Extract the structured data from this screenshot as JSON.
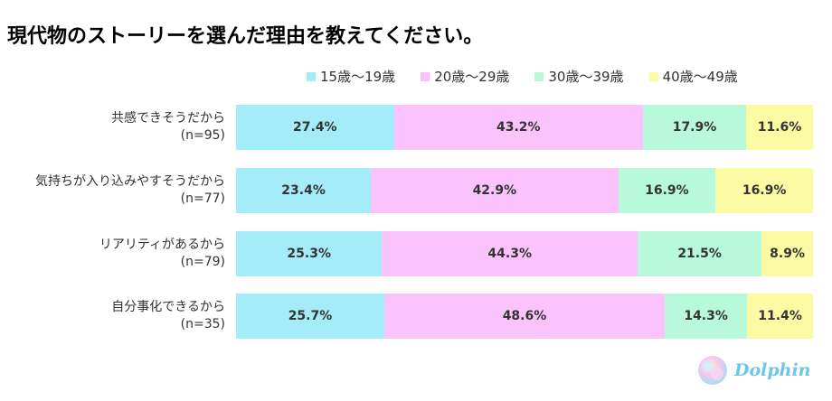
{
  "title": "現代物のストーリーを選んだ理由を教えてください。",
  "brand": {
    "name": "Dolphin"
  },
  "colors": {
    "age_15_19": "#a4ecf8",
    "age_20_29": "#fbc3fb",
    "age_30_39": "#b8f8db",
    "age_40_49": "#fbfba4"
  },
  "chart_data": {
    "type": "bar",
    "orientation": "horizontal",
    "stacked": true,
    "title": "現代物のストーリーを選んだ理由を教えてください。",
    "unit": "%",
    "legend_position": "top",
    "categories": [
      {
        "label": "共感できそうだから",
        "n": "(n=95)"
      },
      {
        "label": "気持ちが入り込みやすそうだから",
        "n": "(n=77)"
      },
      {
        "label": "リアリティがあるから",
        "n": "(n=79)"
      },
      {
        "label": "自分事化できるから",
        "n": "(n=35)"
      }
    ],
    "series": [
      {
        "name": "15歳〜19歳",
        "color": "#a4ecf8",
        "values": [
          27.4,
          23.4,
          25.3,
          25.7
        ],
        "labels": [
          "27.4%",
          "23.4%",
          "25.3%",
          "25.7%"
        ]
      },
      {
        "name": "20歳〜29歳",
        "color": "#fbc3fb",
        "values": [
          43.2,
          42.9,
          44.3,
          48.6
        ],
        "labels": [
          "43.2%",
          "42.9%",
          "44.3%",
          "48.6%"
        ]
      },
      {
        "name": "30歳〜39歳",
        "color": "#b8f8db",
        "values": [
          17.9,
          16.9,
          21.5,
          14.3
        ],
        "labels": [
          "17.9%",
          "16.9%",
          "21.5%",
          "14.3%"
        ]
      },
      {
        "name": "40歳〜49歳",
        "color": "#fbfba4",
        "values": [
          11.6,
          16.9,
          8.9,
          11.4
        ],
        "labels": [
          "11.6%",
          "16.9%",
          "8.9%",
          "11.4%"
        ]
      }
    ]
  }
}
